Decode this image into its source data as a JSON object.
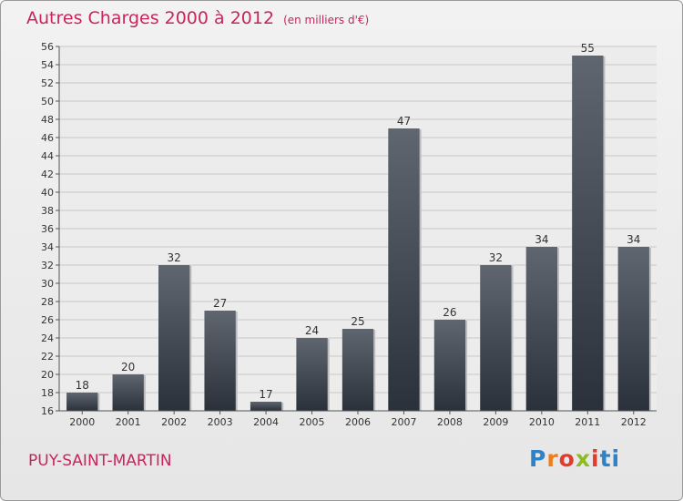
{
  "title": {
    "main": "Autres Charges 2000 à 2012",
    "unit": "(en milliers d'€)"
  },
  "commune": "PUY-SAINT-MARTIN",
  "logo": {
    "letters": [
      "P",
      "r",
      "o",
      "x",
      "i",
      "ti"
    ]
  },
  "colors": {
    "accent": "#c8265b",
    "bar_top": "#5f6670",
    "bar_bottom": "#2b313a"
  },
  "chart_data": {
    "type": "bar",
    "categories": [
      "2000",
      "2001",
      "2002",
      "2003",
      "2004",
      "2005",
      "2006",
      "2007",
      "2008",
      "2009",
      "2010",
      "2011",
      "2012"
    ],
    "values": [
      18,
      20,
      32,
      27,
      17,
      24,
      25,
      47,
      26,
      32,
      34,
      55,
      34
    ],
    "data_labels": [
      "18",
      "20",
      "32",
      "27",
      "17",
      "24",
      "25",
      "47",
      "26",
      "32",
      "34",
      "55",
      "34"
    ],
    "ylim": [
      16,
      56
    ],
    "y_ticks": [
      16,
      18,
      20,
      22,
      24,
      26,
      28,
      30,
      32,
      34,
      36,
      38,
      40,
      42,
      44,
      46,
      48,
      50,
      52,
      54,
      56
    ],
    "grid": true
  }
}
